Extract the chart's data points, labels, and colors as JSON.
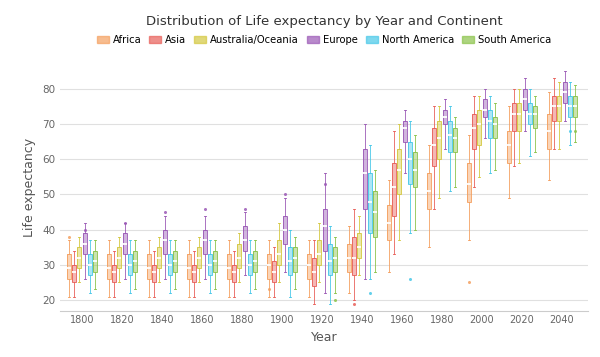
{
  "title": "Distribution of Life expectancy by Year and Continent",
  "xlabel": "Year",
  "ylabel": "Life expectancy",
  "continents": [
    "Africa",
    "Asia",
    "Australia/Oceania",
    "Europe",
    "North America",
    "South America"
  ],
  "colors": [
    "#f4a060",
    "#e8605a",
    "#d4c840",
    "#9b59b6",
    "#48c8e8",
    "#8bc34a"
  ],
  "years": [
    1800,
    1820,
    1840,
    1860,
    1880,
    1900,
    1920,
    1940,
    1960,
    1980,
    2000,
    2020,
    2040
  ],
  "ylim": [
    17,
    87
  ],
  "yticks": [
    20,
    30,
    40,
    50,
    60,
    70,
    80
  ],
  "figsize": [
    6.0,
    3.57
  ],
  "dpi": 100,
  "box_data": {
    "Africa": {
      "1800": {
        "q1": 26,
        "med": 29,
        "q3": 33,
        "whislo": 21,
        "whishi": 37,
        "fliers": [
          38
        ]
      },
      "1820": {
        "q1": 26,
        "med": 29,
        "q3": 33,
        "whislo": 21,
        "whishi": 37,
        "fliers": []
      },
      "1840": {
        "q1": 26,
        "med": 29,
        "q3": 33,
        "whislo": 21,
        "whishi": 37,
        "fliers": []
      },
      "1860": {
        "q1": 26,
        "med": 29,
        "q3": 33,
        "whislo": 21,
        "whishi": 37,
        "fliers": []
      },
      "1880": {
        "q1": 26,
        "med": 29,
        "q3": 33,
        "whislo": 21,
        "whishi": 37,
        "fliers": []
      },
      "1900": {
        "q1": 26,
        "med": 30,
        "q3": 33,
        "whislo": 21,
        "whishi": 37,
        "fliers": [
          23
        ]
      },
      "1920": {
        "q1": 26,
        "med": 30,
        "q3": 33,
        "whislo": 21,
        "whishi": 37,
        "fliers": []
      },
      "1940": {
        "q1": 28,
        "med": 32,
        "q3": 36,
        "whislo": 22,
        "whishi": 41,
        "fliers": []
      },
      "1960": {
        "q1": 37,
        "med": 42,
        "q3": 47,
        "whislo": 28,
        "whishi": 54,
        "fliers": []
      },
      "1980": {
        "q1": 46,
        "med": 51,
        "q3": 56,
        "whislo": 35,
        "whishi": 64,
        "fliers": []
      },
      "2000": {
        "q1": 48,
        "med": 53,
        "q3": 59,
        "whislo": 37,
        "whishi": 67,
        "fliers": [
          25
        ]
      },
      "2020": {
        "q1": 59,
        "med": 64,
        "q3": 68,
        "whislo": 49,
        "whishi": 75,
        "fliers": []
      },
      "2040": {
        "q1": 63,
        "med": 68,
        "q3": 73,
        "whislo": 54,
        "whishi": 79,
        "fliers": []
      }
    },
    "Asia": {
      "1800": {
        "q1": 25,
        "med": 28,
        "q3": 30,
        "whislo": 21,
        "whishi": 34,
        "fliers": []
      },
      "1820": {
        "q1": 25,
        "med": 28,
        "q3": 30,
        "whislo": 21,
        "whishi": 34,
        "fliers": []
      },
      "1840": {
        "q1": 25,
        "med": 28,
        "q3": 30,
        "whislo": 21,
        "whishi": 34,
        "fliers": []
      },
      "1860": {
        "q1": 25,
        "med": 28,
        "q3": 30,
        "whislo": 21,
        "whishi": 34,
        "fliers": []
      },
      "1880": {
        "q1": 25,
        "med": 28,
        "q3": 30,
        "whislo": 21,
        "whishi": 34,
        "fliers": []
      },
      "1900": {
        "q1": 25,
        "med": 28,
        "q3": 31,
        "whislo": 21,
        "whishi": 35,
        "fliers": []
      },
      "1920": {
        "q1": 24,
        "med": 28,
        "q3": 32,
        "whislo": 19,
        "whishi": 37,
        "fliers": []
      },
      "1940": {
        "q1": 27,
        "med": 32,
        "q3": 38,
        "whislo": 20,
        "whishi": 46,
        "fliers": [
          19
        ]
      },
      "1960": {
        "q1": 44,
        "med": 52,
        "q3": 59,
        "whislo": 33,
        "whishi": 68,
        "fliers": []
      },
      "1980": {
        "q1": 58,
        "med": 64,
        "q3": 69,
        "whislo": 46,
        "whishi": 75,
        "fliers": []
      },
      "2000": {
        "q1": 63,
        "med": 69,
        "q3": 73,
        "whislo": 52,
        "whishi": 78,
        "fliers": []
      },
      "2020": {
        "q1": 68,
        "med": 73,
        "q3": 76,
        "whislo": 58,
        "whishi": 80,
        "fliers": []
      },
      "2040": {
        "q1": 71,
        "med": 75,
        "q3": 78,
        "whislo": 63,
        "whishi": 83,
        "fliers": []
      }
    },
    "Australia/Oceania": {
      "1800": {
        "q1": 29,
        "med": 32,
        "q3": 35,
        "whislo": 25,
        "whishi": 38,
        "fliers": []
      },
      "1820": {
        "q1": 29,
        "med": 32,
        "q3": 35,
        "whislo": 25,
        "whishi": 38,
        "fliers": []
      },
      "1840": {
        "q1": 29,
        "med": 32,
        "q3": 35,
        "whislo": 25,
        "whishi": 38,
        "fliers": []
      },
      "1860": {
        "q1": 29,
        "med": 32,
        "q3": 35,
        "whislo": 25,
        "whishi": 38,
        "fliers": []
      },
      "1880": {
        "q1": 29,
        "med": 32,
        "q3": 36,
        "whislo": 25,
        "whishi": 39,
        "fliers": []
      },
      "1900": {
        "q1": 30,
        "med": 33,
        "q3": 37,
        "whislo": 25,
        "whishi": 42,
        "fliers": []
      },
      "1920": {
        "q1": 30,
        "med": 33,
        "q3": 37,
        "whislo": 25,
        "whishi": 42,
        "fliers": []
      },
      "1940": {
        "q1": 32,
        "med": 35,
        "q3": 39,
        "whislo": 27,
        "whishi": 44,
        "fliers": []
      },
      "1960": {
        "q1": 50,
        "med": 57,
        "q3": 63,
        "whislo": 37,
        "whishi": 70,
        "fliers": []
      },
      "1980": {
        "q1": 60,
        "med": 66,
        "q3": 71,
        "whislo": 49,
        "whishi": 75,
        "fliers": []
      },
      "2000": {
        "q1": 64,
        "med": 70,
        "q3": 74,
        "whislo": 55,
        "whishi": 78,
        "fliers": []
      },
      "2020": {
        "q1": 68,
        "med": 73,
        "q3": 76,
        "whislo": 59,
        "whishi": 80,
        "fliers": []
      },
      "2040": {
        "q1": 71,
        "med": 75,
        "q3": 78,
        "whislo": 63,
        "whishi": 82,
        "fliers": []
      }
    },
    "Europe": {
      "1800": {
        "q1": 33,
        "med": 36,
        "q3": 39,
        "whislo": 26,
        "whishi": 42,
        "fliers": [
          40
        ]
      },
      "1820": {
        "q1": 33,
        "med": 36,
        "q3": 39,
        "whislo": 26,
        "whishi": 42,
        "fliers": [
          42
        ]
      },
      "1840": {
        "q1": 33,
        "med": 37,
        "q3": 40,
        "whislo": 26,
        "whishi": 44,
        "fliers": [
          45
        ]
      },
      "1860": {
        "q1": 33,
        "med": 37,
        "q3": 40,
        "whislo": 26,
        "whishi": 44,
        "fliers": [
          46
        ]
      },
      "1880": {
        "q1": 34,
        "med": 37,
        "q3": 41,
        "whislo": 27,
        "whishi": 45,
        "fliers": [
          46
        ]
      },
      "1900": {
        "q1": 36,
        "med": 40,
        "q3": 44,
        "whislo": 28,
        "whishi": 49,
        "fliers": [
          50
        ]
      },
      "1920": {
        "q1": 34,
        "med": 41,
        "q3": 46,
        "whislo": 22,
        "whishi": 56,
        "fliers": [
          53
        ]
      },
      "1940": {
        "q1": 46,
        "med": 56,
        "q3": 63,
        "whislo": 26,
        "whishi": 70,
        "fliers": []
      },
      "1960": {
        "q1": 65,
        "med": 69,
        "q3": 71,
        "whislo": 56,
        "whishi": 74,
        "fliers": []
      },
      "1980": {
        "q1": 70,
        "med": 72,
        "q3": 74,
        "whislo": 63,
        "whishi": 77,
        "fliers": []
      },
      "2000": {
        "q1": 72,
        "med": 74,
        "q3": 77,
        "whislo": 66,
        "whishi": 80,
        "fliers": []
      },
      "2020": {
        "q1": 74,
        "med": 77,
        "q3": 80,
        "whislo": 68,
        "whishi": 83,
        "fliers": []
      },
      "2040": {
        "q1": 76,
        "med": 79,
        "q3": 82,
        "whislo": 71,
        "whishi": 85,
        "fliers": []
      }
    },
    "North America": {
      "1800": {
        "q1": 27,
        "med": 30,
        "q3": 33,
        "whislo": 22,
        "whishi": 37,
        "fliers": []
      },
      "1820": {
        "q1": 27,
        "med": 30,
        "q3": 33,
        "whislo": 22,
        "whishi": 37,
        "fliers": []
      },
      "1840": {
        "q1": 27,
        "med": 30,
        "q3": 33,
        "whislo": 22,
        "whishi": 37,
        "fliers": []
      },
      "1860": {
        "q1": 27,
        "med": 30,
        "q3": 33,
        "whislo": 22,
        "whishi": 37,
        "fliers": []
      },
      "1880": {
        "q1": 27,
        "med": 30,
        "q3": 33,
        "whislo": 22,
        "whishi": 37,
        "fliers": []
      },
      "1900": {
        "q1": 27,
        "med": 31,
        "q3": 35,
        "whislo": 21,
        "whishi": 40,
        "fliers": []
      },
      "1920": {
        "q1": 27,
        "med": 31,
        "q3": 36,
        "whislo": 19,
        "whishi": 41,
        "fliers": []
      },
      "1940": {
        "q1": 39,
        "med": 48,
        "q3": 56,
        "whislo": 26,
        "whishi": 64,
        "fliers": [
          22
        ]
      },
      "1960": {
        "q1": 53,
        "med": 60,
        "q3": 65,
        "whislo": 39,
        "whishi": 71,
        "fliers": [
          26
        ]
      },
      "1980": {
        "q1": 62,
        "med": 67,
        "q3": 71,
        "whislo": 51,
        "whishi": 75,
        "fliers": []
      },
      "2000": {
        "q1": 66,
        "med": 71,
        "q3": 74,
        "whislo": 56,
        "whishi": 78,
        "fliers": []
      },
      "2020": {
        "q1": 70,
        "med": 73,
        "q3": 76,
        "whislo": 61,
        "whishi": 80,
        "fliers": []
      },
      "2040": {
        "q1": 72,
        "med": 75,
        "q3": 78,
        "whislo": 64,
        "whishi": 82,
        "fliers": [
          68
        ]
      }
    },
    "South America": {
      "1800": {
        "q1": 28,
        "med": 31,
        "q3": 34,
        "whislo": 23,
        "whishi": 37,
        "fliers": []
      },
      "1820": {
        "q1": 28,
        "med": 31,
        "q3": 34,
        "whislo": 23,
        "whishi": 37,
        "fliers": []
      },
      "1840": {
        "q1": 28,
        "med": 31,
        "q3": 34,
        "whislo": 23,
        "whishi": 37,
        "fliers": []
      },
      "1860": {
        "q1": 28,
        "med": 31,
        "q3": 34,
        "whislo": 23,
        "whishi": 37,
        "fliers": []
      },
      "1880": {
        "q1": 28,
        "med": 31,
        "q3": 34,
        "whislo": 23,
        "whishi": 37,
        "fliers": []
      },
      "1900": {
        "q1": 28,
        "med": 32,
        "q3": 35,
        "whislo": 23,
        "whishi": 38,
        "fliers": []
      },
      "1920": {
        "q1": 28,
        "med": 32,
        "q3": 35,
        "whislo": 22,
        "whishi": 38,
        "fliers": [
          20
        ]
      },
      "1940": {
        "q1": 38,
        "med": 45,
        "q3": 51,
        "whislo": 28,
        "whishi": 57,
        "fliers": []
      },
      "1960": {
        "q1": 52,
        "med": 57,
        "q3": 62,
        "whislo": 40,
        "whishi": 67,
        "fliers": []
      },
      "1980": {
        "q1": 62,
        "med": 66,
        "q3": 69,
        "whislo": 52,
        "whishi": 72,
        "fliers": []
      },
      "2000": {
        "q1": 66,
        "med": 70,
        "q3": 72,
        "whislo": 57,
        "whishi": 76,
        "fliers": []
      },
      "2020": {
        "q1": 69,
        "med": 73,
        "q3": 75,
        "whislo": 62,
        "whishi": 78,
        "fliers": []
      },
      "2040": {
        "q1": 72,
        "med": 75,
        "q3": 78,
        "whislo": 65,
        "whishi": 81,
        "fliers": [
          68
        ]
      }
    }
  }
}
